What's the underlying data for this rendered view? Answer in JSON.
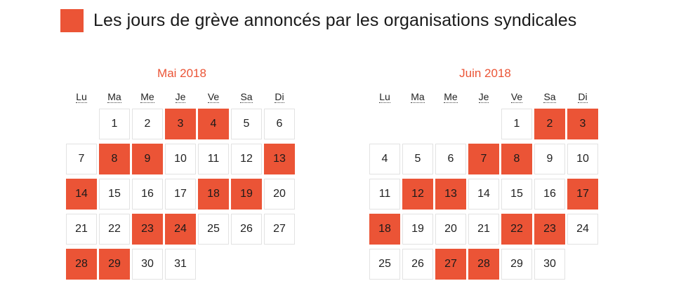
{
  "legend": {
    "label": "Les jours de grève annoncés par les organisations syndicales",
    "color": "#eb5436"
  },
  "weekdays": [
    "Lu",
    "Ma",
    "Me",
    "Je",
    "Ve",
    "Sa",
    "Di"
  ],
  "calendars": [
    {
      "title": "Mai 2018",
      "start_offset": 1,
      "days_in_month": 31,
      "strike_days": [
        3,
        4,
        8,
        9,
        13,
        14,
        18,
        19,
        23,
        24,
        28,
        29
      ]
    },
    {
      "title": "Juin 2018",
      "start_offset": 4,
      "days_in_month": 30,
      "strike_days": [
        2,
        3,
        7,
        8,
        12,
        13,
        17,
        18,
        22,
        23,
        27,
        28
      ]
    }
  ]
}
